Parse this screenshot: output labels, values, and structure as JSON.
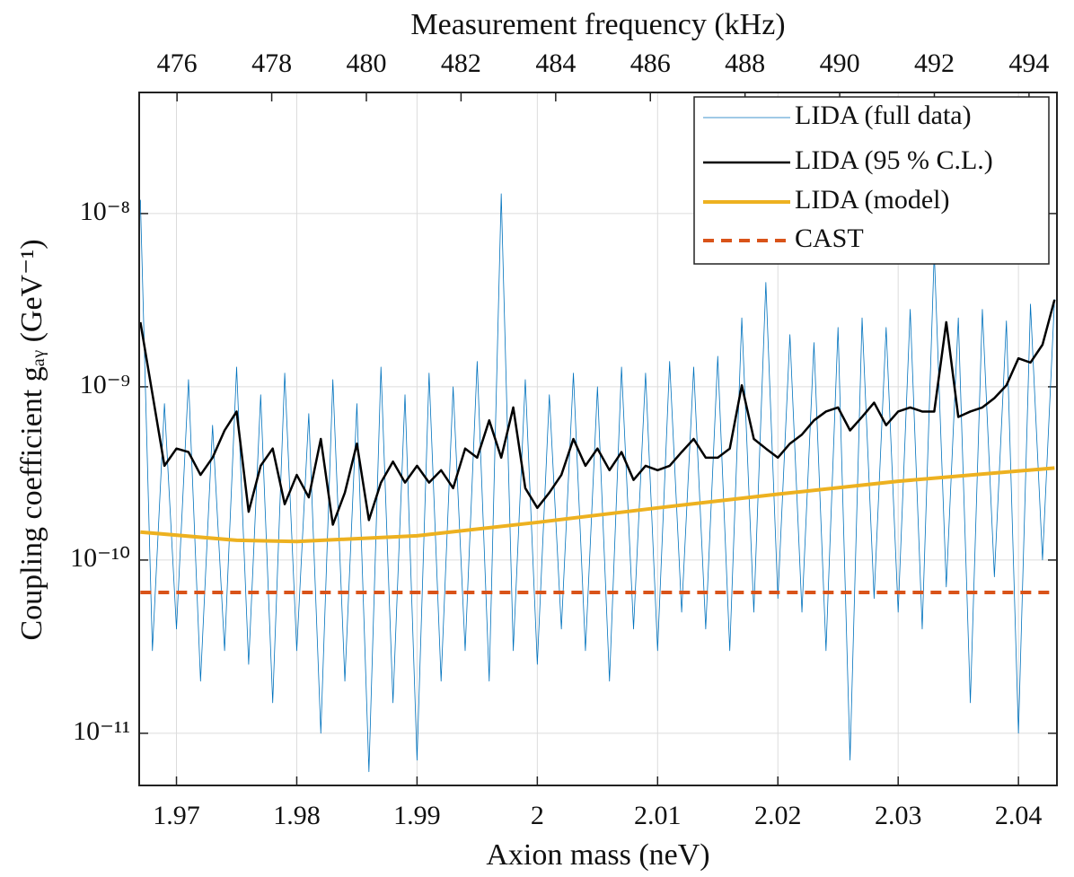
{
  "chart_data": {
    "type": "line",
    "title": "Measurement frequency (kHz)",
    "xlabel": "Axion mass (neV)",
    "ylabel": "Coupling coefficient gₐᵧ (GeV⁻¹)",
    "log_y": true,
    "grid": true,
    "legend": "upper right",
    "xlim": [
      1.9669,
      2.0432
    ],
    "xticks": [
      1.97,
      1.98,
      1.99,
      2,
      2.01,
      2.02,
      2.03,
      2.04
    ],
    "x2lim": [
      475.2,
      494.59
    ],
    "x2ticks": [
      476,
      478,
      480,
      482,
      484,
      486,
      488,
      490,
      492,
      494
    ],
    "ylim": [
      5e-12,
      5e-08
    ],
    "yticks": [
      {
        "value": 1e-11,
        "label": "10⁻¹¹"
      },
      {
        "value": 1e-10,
        "label": "10⁻¹⁰"
      },
      {
        "value": 1e-09,
        "label": "10⁻⁹"
      },
      {
        "value": 1e-08,
        "label": "10⁻⁸"
      }
    ],
    "x": [
      1.967,
      1.968,
      1.969,
      1.97,
      1.971,
      1.972,
      1.973,
      1.974,
      1.975,
      1.976,
      1.977,
      1.978,
      1.979,
      1.98,
      1.981,
      1.982,
      1.983,
      1.984,
      1.985,
      1.986,
      1.987,
      1.988,
      1.989,
      1.99,
      1.991,
      1.992,
      1.993,
      1.994,
      1.995,
      1.996,
      1.997,
      1.998,
      1.999,
      2.0,
      2.001,
      2.002,
      2.003,
      2.004,
      2.005,
      2.006,
      2.007,
      2.008,
      2.009,
      2.01,
      2.011,
      2.012,
      2.013,
      2.014,
      2.015,
      2.016,
      2.017,
      2.018,
      2.019,
      2.02,
      2.021,
      2.022,
      2.023,
      2.024,
      2.025,
      2.026,
      2.027,
      2.028,
      2.029,
      2.03,
      2.031,
      2.032,
      2.033,
      2.034,
      2.035,
      2.036,
      2.037,
      2.038,
      2.039,
      2.04,
      2.041,
      2.042,
      2.043
    ],
    "series": [
      {
        "name": "LIDA (full data)",
        "color": "#0072bd",
        "width": 0.8,
        "values": [
          1.2e-08,
          3e-11,
          8e-10,
          4e-11,
          1.1e-09,
          2e-11,
          6e-10,
          3e-11,
          1.3e-09,
          2.5e-11,
          9e-10,
          1.5e-11,
          1.2e-09,
          3e-11,
          7e-10,
          1e-11,
          1.1e-09,
          2e-11,
          8e-10,
          6e-12,
          1.3e-09,
          1.5e-11,
          9e-10,
          7e-12,
          1.2e-09,
          2e-11,
          1e-09,
          3e-11,
          1.4e-09,
          2e-11,
          1.3e-08,
          3e-11,
          1.1e-09,
          2.5e-11,
          9e-10,
          4e-11,
          1.2e-09,
          3e-11,
          1e-09,
          2e-11,
          1.3e-09,
          4e-11,
          1.2e-09,
          3e-11,
          1.4e-09,
          5e-11,
          1.3e-09,
          4e-11,
          1.5e-09,
          3e-11,
          2.5e-09,
          5e-11,
          4e-09,
          6e-11,
          2e-09,
          5e-11,
          1.8e-09,
          3e-11,
          2.2e-09,
          7e-12,
          2.5e-09,
          6e-11,
          2.2e-09,
          5e-11,
          2.8e-09,
          4e-11,
          6e-09,
          7e-11,
          2.5e-09,
          1.5e-11,
          2.8e-09,
          8e-11,
          2.4e-09,
          1e-11,
          3e-09,
          1e-10,
          3.2e-09
        ]
      },
      {
        "name": "LIDA (95 % C.L.)",
        "color": "#000000",
        "width": 2.5,
        "values": [
          2.36e-09,
          9.1e-10,
          3.5e-10,
          4.4e-10,
          4.2e-10,
          3.1e-10,
          3.9e-10,
          5.6e-10,
          7.2e-10,
          1.9e-10,
          3.5e-10,
          4.4e-10,
          2.1e-10,
          3.1e-10,
          2.3e-10,
          5e-10,
          1.6e-10,
          2.45e-10,
          4.7e-10,
          1.7e-10,
          2.8e-10,
          3.7e-10,
          2.8e-10,
          3.5e-10,
          2.8e-10,
          3.3e-10,
          2.6e-10,
          4.4e-10,
          3.9e-10,
          6.4e-10,
          3.9e-10,
          7.6e-10,
          2.6e-10,
          2e-10,
          2.45e-10,
          3.1e-10,
          5e-10,
          3.5e-10,
          4.4e-10,
          3.3e-10,
          4.2e-10,
          2.9e-10,
          3.5e-10,
          3.3e-10,
          3.5e-10,
          4.2e-10,
          5e-10,
          3.9e-10,
          3.9e-10,
          4.4e-10,
          1.02e-09,
          5e-10,
          4.4e-10,
          3.9e-10,
          4.7e-10,
          5.3e-10,
          6.4e-10,
          7.2e-10,
          7.6e-10,
          5.6e-10,
          6.7e-10,
          8.1e-10,
          6e-10,
          7.2e-10,
          7.6e-10,
          7.2e-10,
          7.2e-10,
          2.36e-09,
          6.7e-10,
          7.2e-10,
          7.6e-10,
          8.6e-10,
          1.02e-09,
          1.46e-09,
          1.38e-09,
          1.75e-09,
          3.18e-09
        ]
      },
      {
        "name": "LIDA (model)",
        "color": "#edb120",
        "width": 4,
        "x": [
          1.967,
          1.975,
          1.98,
          1.99,
          2.0,
          2.01,
          2.02,
          2.03,
          2.043
        ],
        "values": [
          1.45e-10,
          1.3e-10,
          1.28e-10,
          1.38e-10,
          1.65e-10,
          2e-10,
          2.4e-10,
          2.85e-10,
          3.4e-10
        ]
      },
      {
        "name": "CAST",
        "color": "#d95319",
        "width": 4,
        "dashed": true,
        "x": [
          1.967,
          2.043
        ],
        "values": [
          6.5e-11,
          6.5e-11
        ]
      }
    ]
  }
}
